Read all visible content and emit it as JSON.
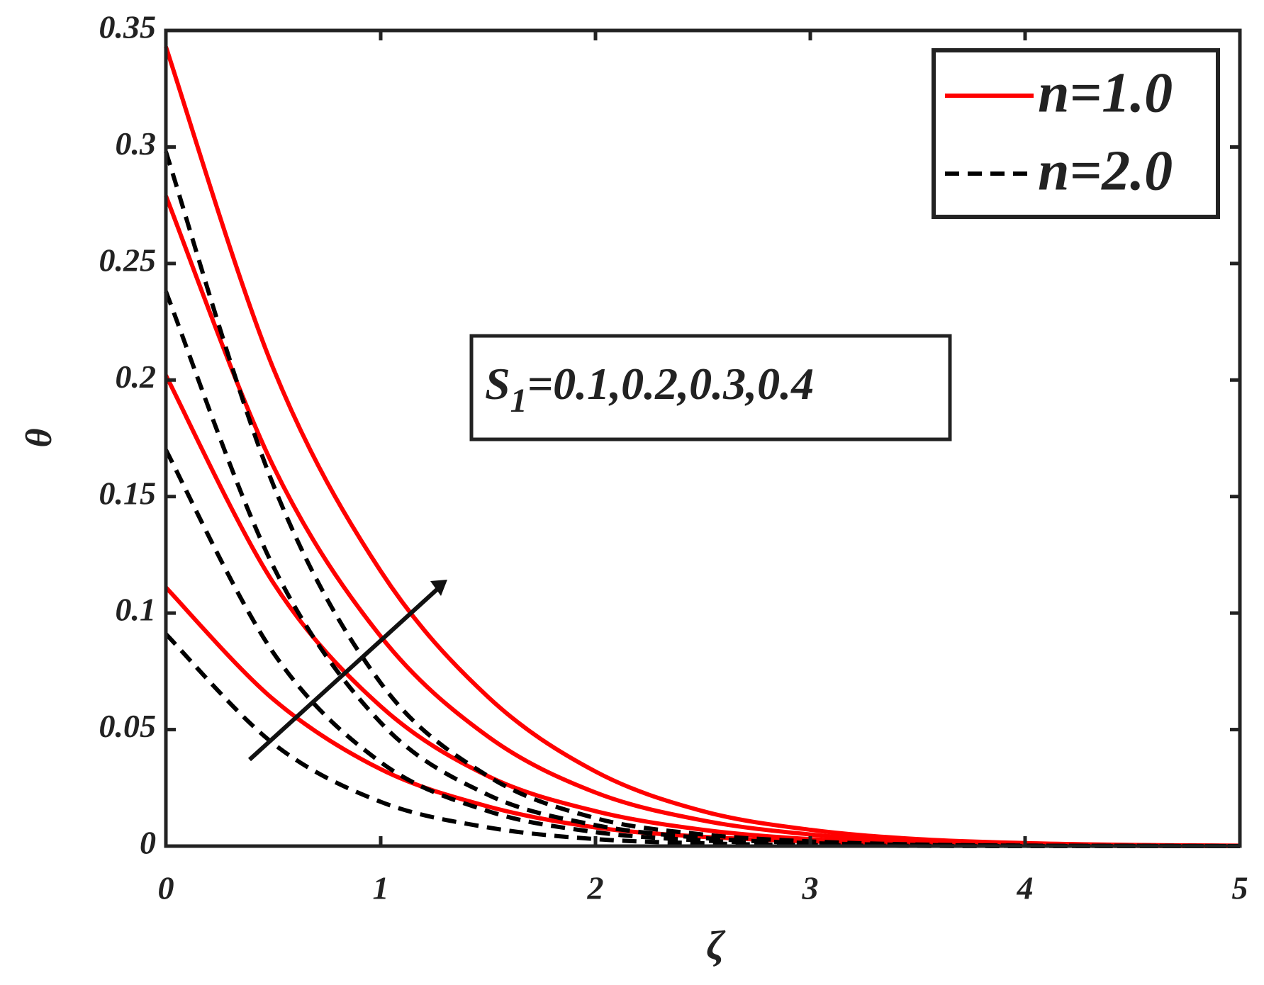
{
  "chart_data": {
    "type": "line",
    "xlabel": "ζ",
    "ylabel": "θ",
    "annotation": [
      "S",
      "1",
      "=0.1,0.2,0.3,0.4"
    ],
    "x": [
      0,
      0.5,
      1,
      1.5,
      2,
      2.5,
      3,
      3.5,
      4,
      4.5,
      5
    ],
    "xlim": [
      0,
      5
    ],
    "xticks": [
      0,
      1,
      2,
      3,
      4,
      5
    ],
    "ylim": [
      0,
      0.35
    ],
    "yticks": [
      0,
      0.05,
      0.1,
      0.15,
      0.2,
      0.25,
      0.3,
      0.35
    ],
    "grid": false,
    "legend": "upper right",
    "series": [
      {
        "name": "n=1.0",
        "color": "#ff0000",
        "dash": false,
        "values": [
          0.343,
          0.205,
          0.118,
          0.064,
          0.032,
          0.015,
          0.007,
          0.003,
          0.0013,
          0.0005,
          0.0002
        ]
      },
      {
        "name": "n=1.0",
        "color": "#ff0000",
        "dash": false,
        "values": [
          0.279,
          0.163,
          0.09,
          0.047,
          0.023,
          0.011,
          0.005,
          0.002,
          0.0009,
          0.0004,
          0.0001
        ]
      },
      {
        "name": "n=1.0",
        "color": "#ff0000",
        "dash": false,
        "values": [
          0.202,
          0.113,
          0.06,
          0.03,
          0.015,
          0.007,
          0.003,
          0.0013,
          0.0006,
          0.0002,
          0.0001
        ]
      },
      {
        "name": "n=1.0",
        "color": "#ff0000",
        "dash": false,
        "values": [
          0.111,
          0.063,
          0.033,
          0.017,
          0.008,
          0.004,
          0.002,
          0.0008,
          0.0003,
          0.0001,
          0
        ]
      },
      {
        "name": "n=2.0",
        "color": "#000000",
        "dash": true,
        "values": [
          0.298,
          0.155,
          0.07,
          0.03,
          0.012,
          0.005,
          0.002,
          0.0007,
          0.0002,
          0.0001,
          0
        ]
      },
      {
        "name": "n=2.0",
        "color": "#000000",
        "dash": true,
        "values": [
          0.238,
          0.12,
          0.053,
          0.022,
          0.009,
          0.0035,
          0.0013,
          0.0005,
          0.0002,
          0.0001,
          0
        ]
      },
      {
        "name": "n=2.0",
        "color": "#000000",
        "dash": true,
        "values": [
          0.17,
          0.083,
          0.036,
          0.015,
          0.006,
          0.0024,
          0.0009,
          0.0003,
          0.0001,
          0,
          0
        ]
      },
      {
        "name": "n=2.0",
        "color": "#000000",
        "dash": true,
        "values": [
          0.091,
          0.044,
          0.019,
          0.008,
          0.003,
          0.0012,
          0.0004,
          0.0001,
          0,
          0,
          0
        ]
      }
    ]
  }
}
